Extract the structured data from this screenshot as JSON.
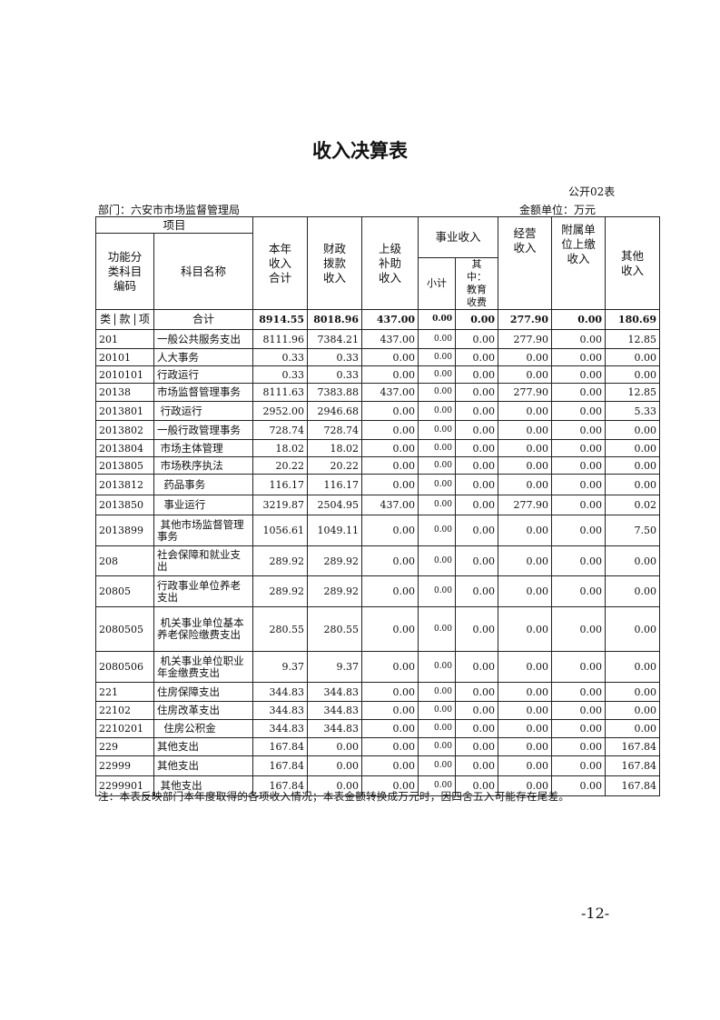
{
  "title": "收入决算表",
  "table_no": "公开02表",
  "department": "部门：六安市市场监督管理局",
  "unit": "金额单位：万元",
  "headers": {
    "item": "项目",
    "code": "功能分类科目编码",
    "name": "科目名称",
    "total": "本年收入合计",
    "fiscal": "财政拨款收入",
    "superior": "上级补助收入",
    "business": "事业收入",
    "subtotal": "小计",
    "edu": "其中：教育收费",
    "operating": "经营收入",
    "affiliated": "附属单位上缴收入",
    "other": "其他收入",
    "lei": "类",
    "kuan": "款",
    "xiang": "项"
  },
  "total_row": {
    "name": "合计",
    "values": [
      "8914.55",
      "8018.96",
      "437.00",
      "0.00",
      "0.00",
      "277.90",
      "0.00",
      "180.69"
    ]
  },
  "rows": [
    {
      "code": "201",
      "name": "一般公共服务支出",
      "values": [
        "8111.96",
        "7384.21",
        "437.00",
        "0.00",
        "0.00",
        "277.90",
        "0.00",
        "12.85"
      ]
    },
    {
      "code": "20101",
      "name": "人大事务",
      "values": [
        "0.33",
        "0.33",
        "0.00",
        "0.00",
        "0.00",
        "0.00",
        "0.00",
        "0.00"
      ]
    },
    {
      "code": "2010101",
      "name": "行政运行",
      "values": [
        "0.33",
        "0.33",
        "0.00",
        "0.00",
        "0.00",
        "0.00",
        "0.00",
        "0.00"
      ]
    },
    {
      "code": "20138",
      "name": "市场监督管理事务",
      "values": [
        "8111.63",
        "7383.88",
        "437.00",
        "0.00",
        "0.00",
        "277.90",
        "0.00",
        "12.85"
      ]
    },
    {
      "code": "2013801",
      "name": " 行政运行",
      "values": [
        "2952.00",
        "2946.68",
        "0.00",
        "0.00",
        "0.00",
        "0.00",
        "0.00",
        "5.33"
      ]
    },
    {
      "code": "2013802",
      "name": "一般行政管理事务",
      "values": [
        "728.74",
        "728.74",
        "0.00",
        "0.00",
        "0.00",
        "0.00",
        "0.00",
        "0.00"
      ]
    },
    {
      "code": "2013804",
      "name": " 市场主体管理",
      "values": [
        "18.02",
        "18.02",
        "0.00",
        "0.00",
        "0.00",
        "0.00",
        "0.00",
        "0.00"
      ]
    },
    {
      "code": "2013805",
      "name": " 市场秩序执法",
      "values": [
        "20.22",
        "20.22",
        "0.00",
        "0.00",
        "0.00",
        "0.00",
        "0.00",
        "0.00"
      ]
    },
    {
      "code": "2013812",
      "name": "  药品事务",
      "values": [
        "116.17",
        "116.17",
        "0.00",
        "0.00",
        "0.00",
        "0.00",
        "0.00",
        "0.00"
      ]
    },
    {
      "code": "2013850",
      "name": "  事业运行",
      "values": [
        "3219.87",
        "2504.95",
        "437.00",
        "0.00",
        "0.00",
        "277.90",
        "0.00",
        "0.02"
      ]
    },
    {
      "code": "2013899",
      "name": " 其他市场监督管理事务",
      "values": [
        "1056.61",
        "1049.11",
        "0.00",
        "0.00",
        "0.00",
        "0.00",
        "0.00",
        "7.50"
      ]
    },
    {
      "code": "208",
      "name": "社会保障和就业支出",
      "values": [
        "289.92",
        "289.92",
        "0.00",
        "0.00",
        "0.00",
        "0.00",
        "0.00",
        "0.00"
      ]
    },
    {
      "code": "20805",
      "name": "行政事业单位养老支出",
      "values": [
        "289.92",
        "289.92",
        "0.00",
        "0.00",
        "0.00",
        "0.00",
        "0.00",
        "0.00"
      ]
    },
    {
      "code": "2080505",
      "name": " 机关事业单位基本养老保险缴费支出",
      "values": [
        "280.55",
        "280.55",
        "0.00",
        "0.00",
        "0.00",
        "0.00",
        "0.00",
        "0.00"
      ]
    },
    {
      "code": "2080506",
      "name": " 机关事业单位职业年金缴费支出",
      "values": [
        "9.37",
        "9.37",
        "0.00",
        "0.00",
        "0.00",
        "0.00",
        "0.00",
        "0.00"
      ]
    },
    {
      "code": "221",
      "name": "住房保障支出",
      "values": [
        "344.83",
        "344.83",
        "0.00",
        "0.00",
        "0.00",
        "0.00",
        "0.00",
        "0.00"
      ]
    },
    {
      "code": "22102",
      "name": "住房改革支出",
      "values": [
        "344.83",
        "344.83",
        "0.00",
        "0.00",
        "0.00",
        "0.00",
        "0.00",
        "0.00"
      ]
    },
    {
      "code": "2210201",
      "name": "  住房公积金",
      "values": [
        "344.83",
        "344.83",
        "0.00",
        "0.00",
        "0.00",
        "0.00",
        "0.00",
        "0.00"
      ]
    },
    {
      "code": "229",
      "name": "其他支出",
      "values": [
        "167.84",
        "0.00",
        "0.00",
        "0.00",
        "0.00",
        "0.00",
        "0.00",
        "167.84"
      ]
    },
    {
      "code": "22999",
      "name": "其他支出",
      "values": [
        "167.84",
        "0.00",
        "0.00",
        "0.00",
        "0.00",
        "0.00",
        "0.00",
        "167.84"
      ]
    },
    {
      "code": "2299901",
      "name": " 其他支出",
      "values": [
        "167.84",
        "0.00",
        "0.00",
        "0.00",
        "0.00",
        "0.00",
        "0.00",
        "167.84"
      ]
    }
  ],
  "note": "注：本表反映部门本年度取得的各项收入情况；本表金额转换成万元时，因四舍五入可能存在尾差。",
  "page_number": "-12-"
}
